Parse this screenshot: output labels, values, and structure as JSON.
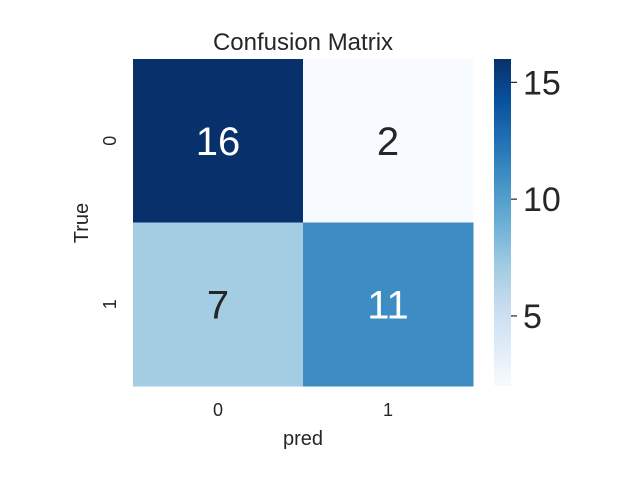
{
  "chart_data": {
    "type": "heatmap",
    "title": "Confusion Matrix",
    "xlabel": "pred",
    "ylabel": "True",
    "x_categories": [
      "0",
      "1"
    ],
    "y_categories": [
      "0",
      "1"
    ],
    "values": [
      [
        16,
        2
      ],
      [
        7,
        11
      ]
    ],
    "colorbar": {
      "range": [
        2,
        16
      ],
      "ticks": [
        5,
        10,
        15
      ]
    },
    "colormap": {
      "name": "Blues",
      "stops": [
        [
          0.0,
          "#f7fbff"
        ],
        [
          0.125,
          "#deebf7"
        ],
        [
          0.25,
          "#c6dbef"
        ],
        [
          0.375,
          "#9ecae1"
        ],
        [
          0.5,
          "#6baed6"
        ],
        [
          0.625,
          "#4292c6"
        ],
        [
          0.75,
          "#2171b5"
        ],
        [
          0.875,
          "#08519c"
        ],
        [
          1.0,
          "#08306b"
        ]
      ]
    },
    "grid": false,
    "legend": "right"
  }
}
